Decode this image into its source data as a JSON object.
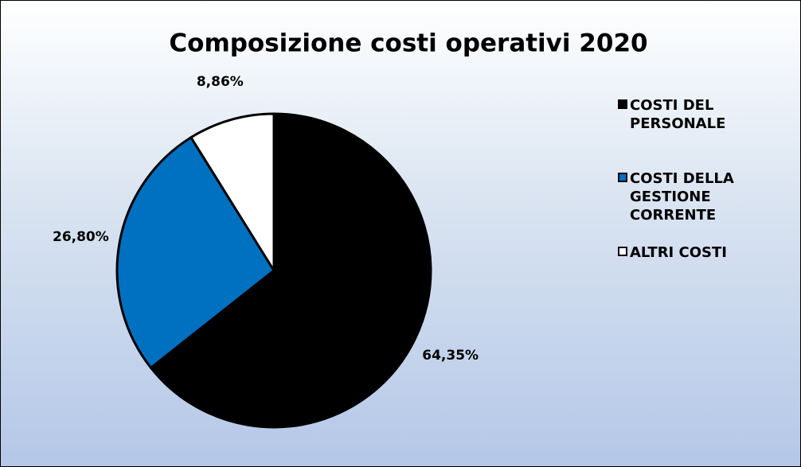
{
  "chart_data": {
    "type": "pie",
    "title": "Composizione costi operativi 2020",
    "categories": [
      "COSTI DEL PERSONALE",
      "COSTI DELLA GESTIONE CORRENTE",
      "ALTRI COSTI"
    ],
    "values": [
      64.35,
      26.8,
      8.86
    ],
    "value_labels": [
      "64,35%",
      "26,80%",
      "8,86%"
    ],
    "colors": [
      "#000000",
      "#0070c0",
      "#ffffff"
    ],
    "legend": "right"
  }
}
